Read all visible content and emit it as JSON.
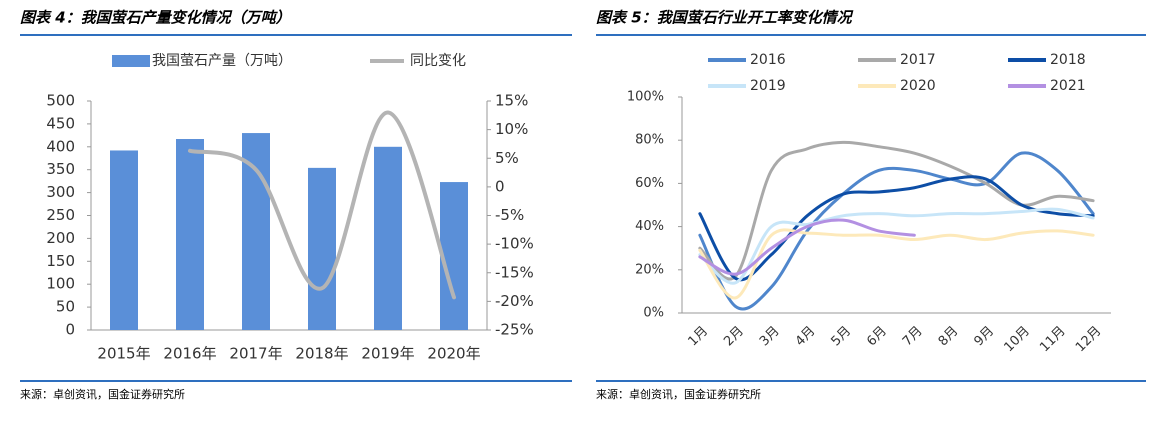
{
  "chart_data": [
    {
      "type": "bar",
      "title": "图表 4：我国萤石产量变化情况（万吨）",
      "source": "来源：卓创资讯，国金证券研究所",
      "categories": [
        "2015年",
        "2016年",
        "2017年",
        "2018年",
        "2019年",
        "2020年"
      ],
      "series": [
        {
          "name": "我国萤石产量（万吨）",
          "color": "#5a8fd8",
          "values": [
            392,
            417,
            430,
            354,
            400,
            323
          ]
        },
        {
          "name": "同比变化",
          "color": "#b4b4b4",
          "axis": "y2",
          "values": [
            null,
            6.3,
            3,
            -17.7,
            13,
            -19.3
          ]
        }
      ],
      "ylim": [
        0,
        500
      ],
      "yticks": [
        0,
        50,
        100,
        150,
        200,
        250,
        300,
        350,
        400,
        450,
        500
      ],
      "y2lim": [
        -25,
        15
      ],
      "y2ticks": [
        {
          "value": -25,
          "label": "-25%"
        },
        {
          "value": -20,
          "label": "-20%"
        },
        {
          "value": -15,
          "label": "-15%"
        },
        {
          "value": -10,
          "label": "-10%"
        },
        {
          "value": -5,
          "label": "-5%"
        },
        0,
        {
          "value": 5,
          "label": "5%"
        },
        {
          "value": 10,
          "label": "10%"
        },
        {
          "value": 15,
          "label": "15%"
        }
      ],
      "grid": false
    },
    {
      "type": "line",
      "title": "图表 5：我国萤石行业开工率变化情况",
      "source": "来源：卓创资讯，国金证券研究所",
      "categories": [
        "1月",
        "2月",
        "3月",
        "4月",
        "5月",
        "6月",
        "7月",
        "8月",
        "9月",
        "10月",
        "11月",
        "12月"
      ],
      "series": [
        {
          "name": "2016",
          "color": "#4f86cc",
          "values": [
            36,
            3,
            12,
            38,
            55,
            66,
            66,
            62,
            60,
            74,
            66,
            46
          ]
        },
        {
          "name": "2017",
          "color": "#a9a9a9",
          "values": [
            30,
            17,
            66,
            76,
            79,
            77,
            74,
            68,
            60,
            50,
            54,
            52
          ]
        },
        {
          "name": "2018",
          "color": "#0d4ea6",
          "values": [
            46,
            16,
            27,
            45,
            55,
            56,
            58,
            62,
            62,
            50,
            46,
            45
          ]
        },
        {
          "name": "2019",
          "color": "#c7e5f8",
          "values": [
            27,
            14,
            40,
            41,
            45,
            46,
            45,
            46,
            46,
            47,
            48,
            44
          ]
        },
        {
          "name": "2020",
          "color": "#fde9ba",
          "values": [
            29,
            7,
            36,
            37,
            36,
            36,
            34,
            36,
            34,
            37,
            38,
            36
          ]
        },
        {
          "name": "2021",
          "color": "#b390e2",
          "values": [
            26,
            18,
            30,
            40,
            43,
            38,
            36,
            null,
            null,
            null,
            null,
            null
          ]
        }
      ],
      "ylim": [
        0,
        100
      ],
      "yticks": [
        {
          "value": 0,
          "label": "0%"
        },
        {
          "value": 20,
          "label": "20%"
        },
        {
          "value": 40,
          "label": "40%"
        },
        {
          "value": 60,
          "label": "60%"
        },
        {
          "value": 80,
          "label": "80%"
        },
        {
          "value": 100,
          "label": "100%"
        }
      ],
      "grid": false
    }
  ]
}
